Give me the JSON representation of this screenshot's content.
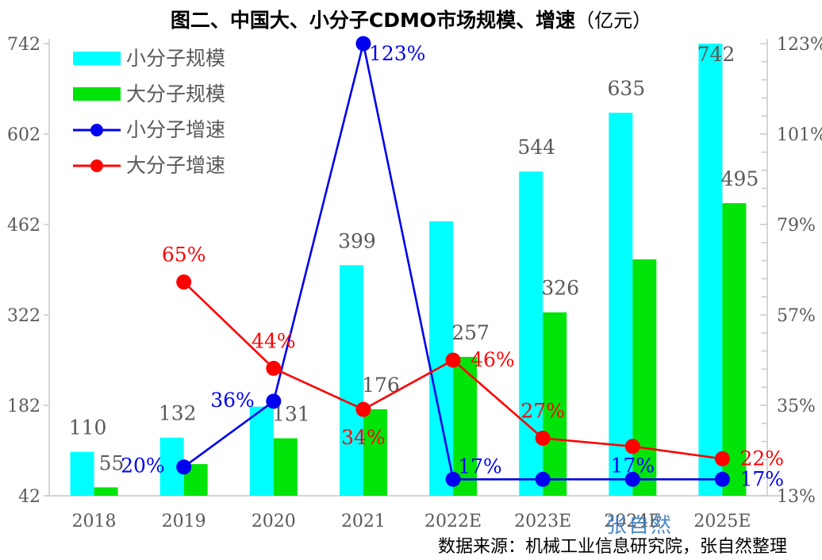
{
  "chart_data": {
    "type": "bar+line combo",
    "title": "图二、中国大、小分子CDMO市场规模、增速",
    "title_unit": "（亿元）",
    "categories": [
      "2018",
      "2019",
      "2020",
      "2021",
      "2022E",
      "2023E",
      "2024E",
      "2025E"
    ],
    "bar_series": [
      {
        "key": "small-molecule-scale",
        "name": "小分子规模",
        "color": "#00FFFF",
        "values": [
          110,
          132,
          180,
          399,
          467,
          544,
          635,
          742
        ],
        "labels": [
          "110",
          "132",
          "",
          "399",
          "",
          "544",
          "635",
          "742"
        ]
      },
      {
        "key": "large-molecule-scale",
        "name": "大分子规模",
        "color": "#00E409",
        "values": [
          55,
          91,
          131,
          176,
          257,
          326,
          408,
          495
        ],
        "labels": [
          "55",
          "",
          "131",
          "176",
          "257",
          "326",
          "",
          "495"
        ]
      }
    ],
    "line_series": [
      {
        "key": "small-molecule-growth",
        "name": "小分子增速",
        "color": "#0000EE",
        "points": [
          {
            "cat": "2019",
            "v": 20,
            "label": "20%",
            "pos": "left"
          },
          {
            "cat": "2020",
            "v": 36,
            "label": "36%",
            "pos": "left"
          },
          {
            "cat": "2021",
            "v": 123,
            "label": "123%",
            "pos": "right-below"
          },
          {
            "cat": "2022E",
            "v": 17,
            "label": "17%",
            "pos": "right-above"
          },
          {
            "cat": "2023E",
            "v": 17,
            "label": "",
            "pos": ""
          },
          {
            "cat": "2024E",
            "v": 17,
            "label": "17%",
            "pos": "above-close"
          },
          {
            "cat": "2025E",
            "v": 17,
            "label": "17%",
            "pos": "right"
          }
        ]
      },
      {
        "key": "large-molecule-growth",
        "name": "大分子增速",
        "color": "#FF0000",
        "points": [
          {
            "cat": "2019",
            "v": 65,
            "label": "65%",
            "pos": "above"
          },
          {
            "cat": "2020",
            "v": 44,
            "label": "44%",
            "pos": "above"
          },
          {
            "cat": "2021",
            "v": 34,
            "label": "34%",
            "pos": "below"
          },
          {
            "cat": "2022E",
            "v": 46,
            "label": "46%",
            "pos": "right"
          },
          {
            "cat": "2023E",
            "v": 27,
            "label": "27%",
            "pos": "above"
          },
          {
            "cat": "2024E",
            "v": 25,
            "label": "",
            "pos": ""
          },
          {
            "cat": "2025E",
            "v": 22,
            "label": "22%",
            "pos": "right"
          }
        ]
      }
    ],
    "left_axis": {
      "min": 42,
      "max": 742,
      "ticks": [
        42,
        182,
        322,
        462,
        602,
        742
      ]
    },
    "right_axis": {
      "min": 13,
      "max": 123,
      "ticks": [
        13,
        35,
        57,
        79,
        101,
        123
      ],
      "tick_suffix": "%",
      "minor_per_interval": 5
    },
    "grid": "off",
    "legend_position": "top-left-inside",
    "colors": {
      "tick_label": "#595959",
      "bar_label": "#595959",
      "axis_line": "#C9C9C9"
    },
    "source": "数据来源：机械工业信息研究院，张自然整理",
    "watermark": "张自然"
  }
}
